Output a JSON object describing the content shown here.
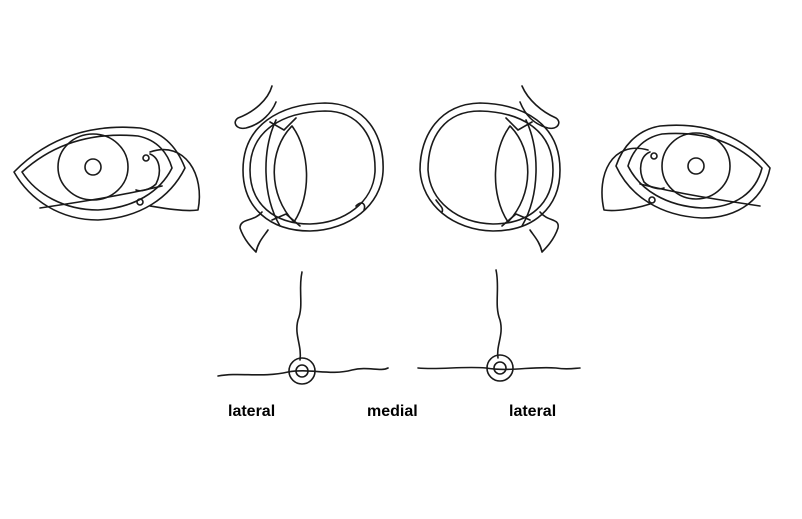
{
  "labels": {
    "left": "lateral",
    "middle": "medial",
    "right": "lateral"
  },
  "colors": {
    "ink": "#1a1a1a",
    "background": "#ffffff"
  }
}
